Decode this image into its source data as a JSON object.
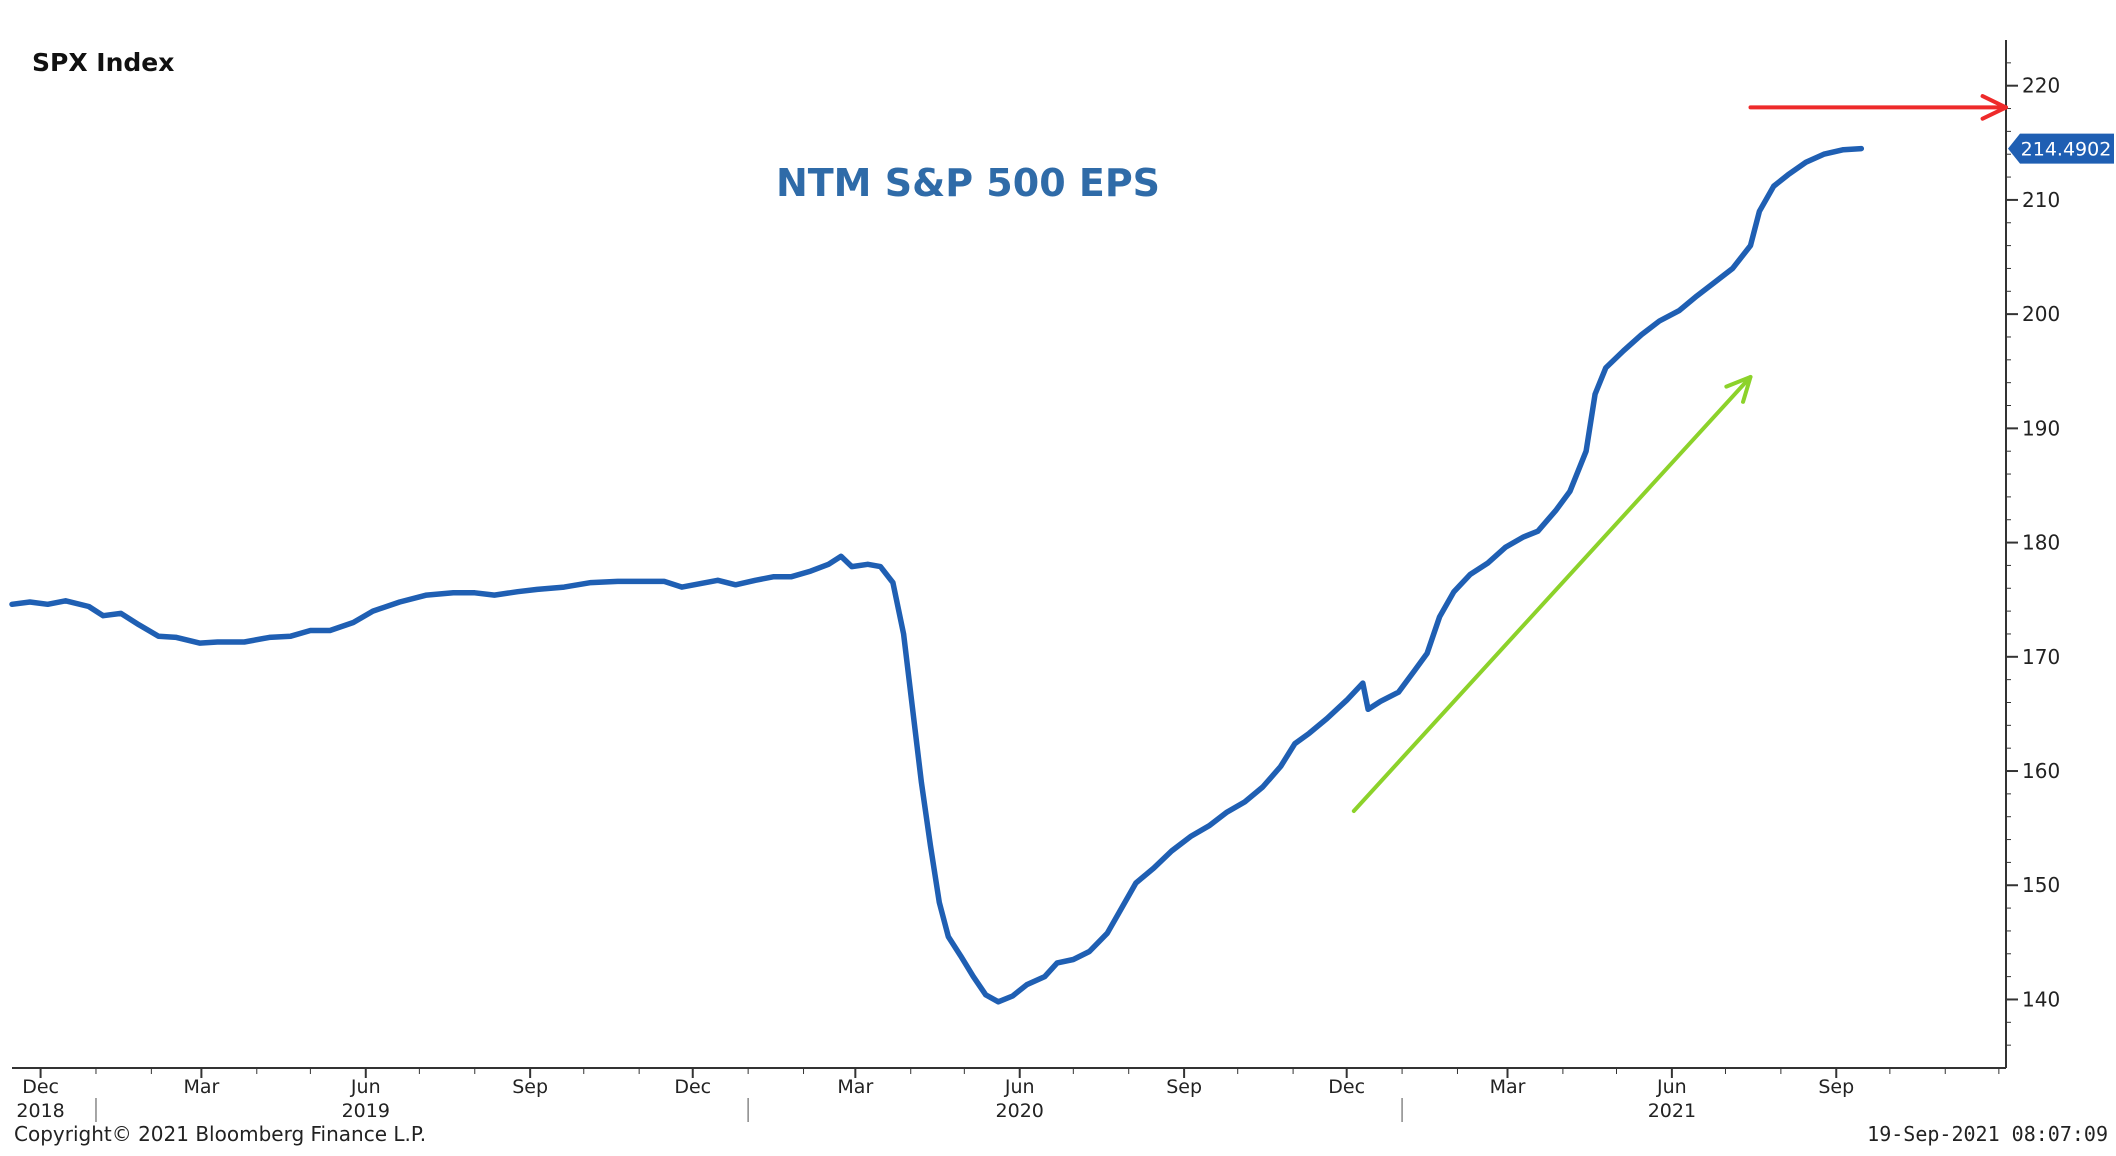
{
  "header": {
    "index_label": "SPX Index"
  },
  "footer": {
    "copyright": "Copyright© 2021 Bloomberg Finance L.P.",
    "timestamp": "19-Sep-2021 08:07:09"
  },
  "colors": {
    "line": "#1f5fb3",
    "title": "#2f6ba8",
    "up_arrow": "#8cd22a",
    "level_arrow": "#ee2a2a",
    "axis": "#333333"
  },
  "chart_data": {
    "type": "line",
    "title": "NTM S&P 500 EPS",
    "xlabel": "",
    "ylabel": "",
    "y_axis_position": "right",
    "ylim": [
      134,
      224
    ],
    "yticks": [
      140,
      150,
      160,
      170,
      180,
      190,
      200,
      210,
      220
    ],
    "xlim": [
      "2018-11-15",
      "2021-12-05"
    ],
    "month_ticks": [
      {
        "label": "Dec",
        "year": "2018",
        "date": "2018-12-01"
      },
      {
        "label": "Mar",
        "year": "",
        "date": "2019-03-01"
      },
      {
        "label": "Jun",
        "year": "2019",
        "date": "2019-06-01"
      },
      {
        "label": "Sep",
        "year": "",
        "date": "2019-09-01"
      },
      {
        "label": "Dec",
        "year": "",
        "date": "2019-12-01"
      },
      {
        "label": "Mar",
        "year": "",
        "date": "2020-03-01"
      },
      {
        "label": "Jun",
        "year": "2020",
        "date": "2020-06-01"
      },
      {
        "label": "Sep",
        "year": "",
        "date": "2020-09-01"
      },
      {
        "label": "Dec",
        "year": "",
        "date": "2020-12-01"
      },
      {
        "label": "Mar",
        "year": "",
        "date": "2021-03-01"
      },
      {
        "label": "Jun",
        "year": "2021",
        "date": "2021-06-01"
      },
      {
        "label": "Sep",
        "year": "",
        "date": "2021-09-01"
      }
    ],
    "year_separators": [
      "2019-01-01",
      "2020-01-01",
      "2021-01-01"
    ],
    "last_value": 214.4902,
    "last_value_label": "214.4902",
    "series": [
      {
        "name": "NTM S&P 500 EPS",
        "points": [
          [
            "2018-11-15",
            174.6
          ],
          [
            "2018-11-25",
            174.8
          ],
          [
            "2018-12-05",
            174.6
          ],
          [
            "2018-12-15",
            174.9
          ],
          [
            "2018-12-28",
            174.4
          ],
          [
            "2019-01-05",
            173.6
          ],
          [
            "2019-01-15",
            173.8
          ],
          [
            "2019-01-25",
            172.8
          ],
          [
            "2019-02-05",
            171.8
          ],
          [
            "2019-02-15",
            171.7
          ],
          [
            "2019-02-28",
            171.2
          ],
          [
            "2019-03-10",
            171.3
          ],
          [
            "2019-03-25",
            171.3
          ],
          [
            "2019-04-08",
            171.7
          ],
          [
            "2019-04-20",
            171.8
          ],
          [
            "2019-05-01",
            172.3
          ],
          [
            "2019-05-12",
            172.3
          ],
          [
            "2019-05-25",
            173.0
          ],
          [
            "2019-06-05",
            174.0
          ],
          [
            "2019-06-20",
            174.8
          ],
          [
            "2019-07-05",
            175.4
          ],
          [
            "2019-07-20",
            175.6
          ],
          [
            "2019-08-01",
            175.6
          ],
          [
            "2019-08-12",
            175.4
          ],
          [
            "2019-08-25",
            175.7
          ],
          [
            "2019-09-05",
            175.9
          ],
          [
            "2019-09-20",
            176.1
          ],
          [
            "2019-10-05",
            176.5
          ],
          [
            "2019-10-20",
            176.6
          ],
          [
            "2019-11-01",
            176.6
          ],
          [
            "2019-11-15",
            176.6
          ],
          [
            "2019-11-25",
            176.1
          ],
          [
            "2019-12-05",
            176.4
          ],
          [
            "2019-12-15",
            176.7
          ],
          [
            "2019-12-25",
            176.3
          ],
          [
            "2020-01-05",
            176.7
          ],
          [
            "2020-01-15",
            177.0
          ],
          [
            "2020-01-25",
            177.0
          ],
          [
            "2020-02-05",
            177.5
          ],
          [
            "2020-02-15",
            178.1
          ],
          [
            "2020-02-22",
            178.8
          ],
          [
            "2020-02-28",
            177.9
          ],
          [
            "2020-03-08",
            178.1
          ],
          [
            "2020-03-15",
            177.9
          ],
          [
            "2020-03-22",
            176.5
          ],
          [
            "2020-03-28",
            172.0
          ],
          [
            "2020-04-02",
            165.5
          ],
          [
            "2020-04-07",
            159.0
          ],
          [
            "2020-04-12",
            153.5
          ],
          [
            "2020-04-17",
            148.5
          ],
          [
            "2020-04-22",
            145.5
          ],
          [
            "2020-04-29",
            143.8
          ],
          [
            "2020-05-06",
            142.0
          ],
          [
            "2020-05-13",
            140.4
          ],
          [
            "2020-05-20",
            139.8
          ],
          [
            "2020-05-28",
            140.3
          ],
          [
            "2020-06-05",
            141.3
          ],
          [
            "2020-06-15",
            142.0
          ],
          [
            "2020-06-22",
            143.2
          ],
          [
            "2020-07-01",
            143.5
          ],
          [
            "2020-07-10",
            144.2
          ],
          [
            "2020-07-20",
            145.8
          ],
          [
            "2020-07-28",
            148.0
          ],
          [
            "2020-08-05",
            150.2
          ],
          [
            "2020-08-15",
            151.5
          ],
          [
            "2020-08-25",
            153.0
          ],
          [
            "2020-09-05",
            154.3
          ],
          [
            "2020-09-15",
            155.2
          ],
          [
            "2020-09-25",
            156.4
          ],
          [
            "2020-10-05",
            157.3
          ],
          [
            "2020-10-15",
            158.6
          ],
          [
            "2020-10-25",
            160.4
          ],
          [
            "2020-11-02",
            162.4
          ],
          [
            "2020-11-10",
            163.3
          ],
          [
            "2020-11-20",
            164.6
          ],
          [
            "2020-12-01",
            166.2
          ],
          [
            "2020-12-10",
            167.7
          ],
          [
            "2020-12-13",
            165.4
          ],
          [
            "2020-12-20",
            166.1
          ],
          [
            "2020-12-30",
            166.9
          ],
          [
            "2021-01-08",
            168.8
          ],
          [
            "2021-01-15",
            170.3
          ],
          [
            "2021-01-22",
            173.5
          ],
          [
            "2021-01-30",
            175.7
          ],
          [
            "2021-02-08",
            177.2
          ],
          [
            "2021-02-18",
            178.2
          ],
          [
            "2021-02-28",
            179.6
          ],
          [
            "2021-03-10",
            180.5
          ],
          [
            "2021-03-18",
            181.0
          ],
          [
            "2021-03-28",
            182.8
          ],
          [
            "2021-04-05",
            184.5
          ],
          [
            "2021-04-14",
            188.0
          ],
          [
            "2021-04-19",
            193.0
          ],
          [
            "2021-04-25",
            195.3
          ],
          [
            "2021-05-05",
            196.8
          ],
          [
            "2021-05-15",
            198.2
          ],
          [
            "2021-05-25",
            199.4
          ],
          [
            "2021-06-05",
            200.3
          ],
          [
            "2021-06-15",
            201.6
          ],
          [
            "2021-06-25",
            202.8
          ],
          [
            "2021-07-05",
            204.0
          ],
          [
            "2021-07-15",
            206.0
          ],
          [
            "2021-07-20",
            209.0
          ],
          [
            "2021-07-28",
            211.2
          ],
          [
            "2021-08-05",
            212.2
          ],
          [
            "2021-08-15",
            213.3
          ],
          [
            "2021-08-25",
            214.0
          ],
          [
            "2021-09-05",
            214.4
          ],
          [
            "2021-09-15",
            214.49
          ]
        ]
      }
    ],
    "annotations": [
      {
        "type": "arrow",
        "color": "green",
        "meaning": "rising trend",
        "from": [
          "2020-12-05",
          156.5
        ],
        "to": [
          "2021-07-15",
          194.5
        ]
      },
      {
        "type": "arrow",
        "color": "red",
        "meaning": "points to current level on axis",
        "from": [
          "2021-07-15",
          218.1
        ],
        "to": [
          "2021-12-05",
          218.1
        ]
      }
    ]
  }
}
